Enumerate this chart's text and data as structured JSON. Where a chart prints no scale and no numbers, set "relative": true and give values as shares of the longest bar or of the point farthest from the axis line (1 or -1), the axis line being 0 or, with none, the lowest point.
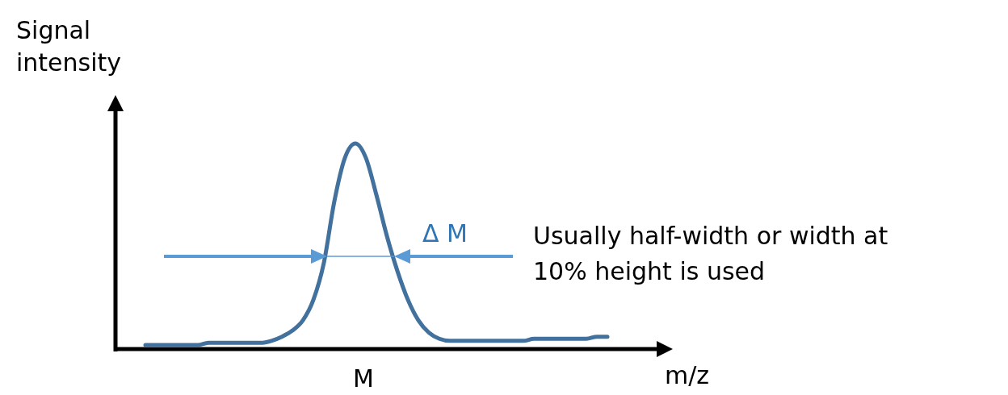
{
  "chart_data": {
    "type": "line",
    "relative": true,
    "ylabel": "Signal intensity",
    "xlabel": "m/z",
    "color": "#41719c",
    "categories": [
      null,
      null,
      null,
      null,
      null,
      null,
      null,
      null,
      null,
      null,
      null,
      null,
      null,
      null,
      null,
      null,
      null,
      null,
      null,
      null,
      null,
      null,
      null,
      null,
      null,
      null,
      null,
      null,
      null,
      null,
      null,
      null,
      null,
      null,
      null,
      null,
      null,
      null,
      null,
      null,
      null,
      null,
      null,
      null,
      null
    ],
    "values": [
      0.02,
      0.02,
      0.02,
      0.02,
      0.02,
      0.02,
      0.03,
      0.03,
      0.03,
      0.03,
      0.03,
      0.03,
      0.04,
      0.06,
      0.09,
      0.14,
      0.24,
      0.42,
      0.72,
      0.93,
      1,
      0.93,
      0.75,
      0.55,
      0.38,
      0.24,
      0.14,
      0.08,
      0.05,
      0.04,
      0.04,
      0.04,
      0.04,
      0.04,
      0.04,
      0.04,
      0.04,
      0.05,
      0.05,
      0.05,
      0.05,
      0.05,
      0.05,
      0.06,
      0.06
    ],
    "annotations": [
      "M",
      "Δ M",
      "Usually half-width or width at 10% height is used"
    ]
  }
}
